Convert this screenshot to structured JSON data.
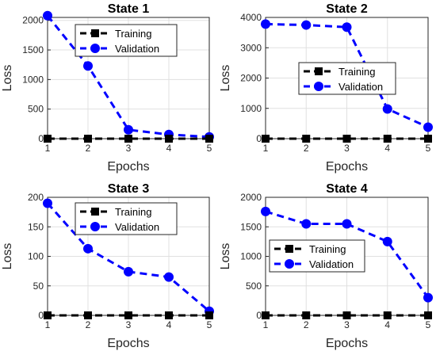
{
  "chart_data": [
    {
      "type": "line",
      "title": "State 1",
      "xlabel": "Epochs",
      "ylabel": "Loss",
      "x": [
        1,
        2,
        3,
        4,
        5
      ],
      "xlim": [
        1,
        5
      ],
      "ylim": [
        0,
        2050
      ],
      "yticks": [
        0,
        500,
        1000,
        1500,
        2000
      ],
      "grid": true,
      "legend_position": "top-center",
      "series": [
        {
          "name": "Training",
          "color": "#000000",
          "marker": "square",
          "values": [
            0,
            0,
            0,
            0,
            0
          ]
        },
        {
          "name": "Validation",
          "color": "#0000ff",
          "marker": "circle",
          "values": [
            2080,
            1230,
            150,
            70,
            30
          ]
        }
      ]
    },
    {
      "type": "line",
      "title": "State 2",
      "xlabel": "Epochs",
      "ylabel": "Loss",
      "x": [
        1,
        2,
        3,
        4,
        5
      ],
      "xlim": [
        1,
        5
      ],
      "ylim": [
        0,
        4000
      ],
      "yticks": [
        0,
        1000,
        2000,
        3000,
        4000
      ],
      "grid": true,
      "legend_position": "center",
      "series": [
        {
          "name": "Training",
          "color": "#000000",
          "marker": "square",
          "values": [
            0,
            0,
            0,
            0,
            0
          ]
        },
        {
          "name": "Validation",
          "color": "#0000ff",
          "marker": "circle",
          "values": [
            3780,
            3750,
            3680,
            980,
            380
          ]
        }
      ]
    },
    {
      "type": "line",
      "title": "State 3",
      "xlabel": "Epochs",
      "ylabel": "Loss",
      "x": [
        1,
        2,
        3,
        4,
        5
      ],
      "xlim": [
        1,
        5
      ],
      "ylim": [
        0,
        200
      ],
      "yticks": [
        0,
        50,
        100,
        150,
        200
      ],
      "grid": true,
      "legend_position": "top-center",
      "series": [
        {
          "name": "Training",
          "color": "#000000",
          "marker": "square",
          "values": [
            0,
            0,
            0,
            0,
            0
          ]
        },
        {
          "name": "Validation",
          "color": "#0000ff",
          "marker": "circle",
          "values": [
            190,
            113,
            74,
            65,
            7
          ]
        }
      ]
    },
    {
      "type": "line",
      "title": "State 4",
      "xlabel": "Epochs",
      "ylabel": "Loss",
      "x": [
        1,
        2,
        3,
        4,
        5
      ],
      "xlim": [
        1,
        5
      ],
      "ylim": [
        0,
        2000
      ],
      "yticks": [
        0,
        500,
        1000,
        1500,
        2000
      ],
      "grid": true,
      "legend_position": "center-left",
      "series": [
        {
          "name": "Training",
          "color": "#000000",
          "marker": "square",
          "values": [
            0,
            0,
            0,
            0,
            0
          ]
        },
        {
          "name": "Validation",
          "color": "#0000ff",
          "marker": "circle",
          "values": [
            1760,
            1550,
            1550,
            1250,
            300
          ]
        }
      ]
    }
  ]
}
